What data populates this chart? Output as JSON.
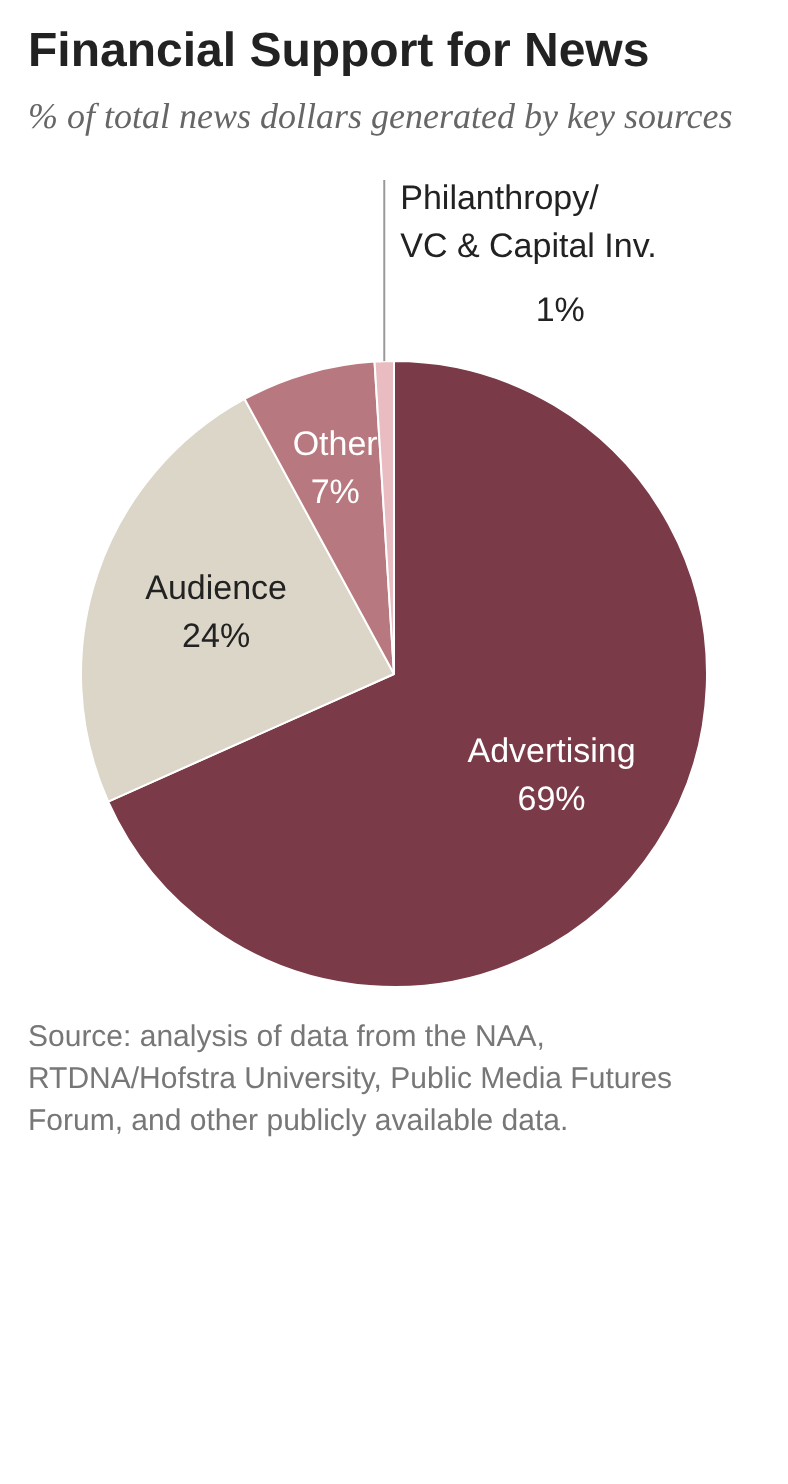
{
  "chart_data": {
    "type": "pie",
    "title": "Financial Support for News",
    "subtitle": "% of total news dollars generated by key sources",
    "categories": [
      "Advertising",
      "Audience",
      "Other",
      "Philanthropy/\nVC & Capital Inv."
    ],
    "values": [
      69,
      24,
      7,
      1
    ],
    "colors": [
      "#7a3a48",
      "#dcd6c8",
      "#b8787f",
      "#e8bcc0"
    ],
    "value_labels": [
      "69%",
      "24%",
      "7%",
      "1%"
    ],
    "legend": false,
    "annotations": [
      "Source: analysis of data from the NAA, RTDNA/Hofstra University, Public Media Futures Forum, and other publicly available data."
    ]
  }
}
